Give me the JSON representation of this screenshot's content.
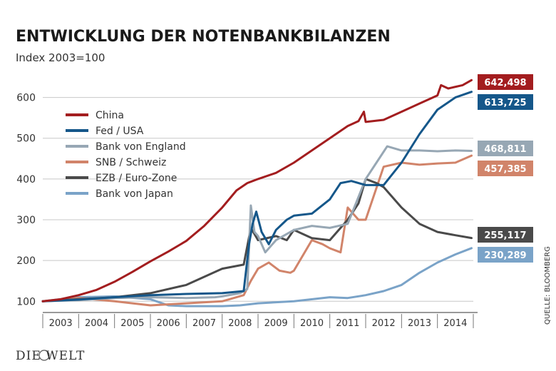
{
  "chart_data": {
    "type": "line",
    "title": "ENTWICKLUNG DER NOTENBANKBILANZEN",
    "subtitle": "Index 2003=100",
    "ylim": [
      100,
      650
    ],
    "yticks": [
      100,
      200,
      300,
      400,
      500,
      600
    ],
    "x_categories": [
      "2003",
      "2004",
      "2005",
      "2006",
      "2007",
      "2008",
      "2009",
      "2010",
      "2011",
      "2012",
      "2013",
      "2014"
    ],
    "xlim": [
      2003.0,
      2015.0
    ],
    "grid": true,
    "legend_position": "top-left",
    "source": "QUELLE: BLOOMBERG",
    "brand": "DIE WELT",
    "series": [
      {
        "name": "China",
        "color": "#a31d1f",
        "end_label": "642,498",
        "points": [
          [
            2003.0,
            100
          ],
          [
            2003.5,
            105
          ],
          [
            2004.0,
            115
          ],
          [
            2004.5,
            128
          ],
          [
            2005.0,
            148
          ],
          [
            2005.5,
            172
          ],
          [
            2006.0,
            198
          ],
          [
            2006.5,
            222
          ],
          [
            2007.0,
            248
          ],
          [
            2007.5,
            285
          ],
          [
            2008.0,
            330
          ],
          [
            2008.4,
            372
          ],
          [
            2008.7,
            390
          ],
          [
            2009.0,
            400
          ],
          [
            2009.5,
            415
          ],
          [
            2010.0,
            440
          ],
          [
            2010.5,
            470
          ],
          [
            2011.0,
            500
          ],
          [
            2011.5,
            530
          ],
          [
            2011.8,
            542
          ],
          [
            2011.95,
            565
          ],
          [
            2012.0,
            540
          ],
          [
            2012.5,
            545
          ],
          [
            2013.0,
            565
          ],
          [
            2013.5,
            585
          ],
          [
            2014.0,
            605
          ],
          [
            2014.1,
            630
          ],
          [
            2014.3,
            622
          ],
          [
            2014.7,
            630
          ],
          [
            2014.95,
            642.498
          ]
        ]
      },
      {
        "name": "Fed / USA",
        "color": "#15578a",
        "end_label": "613,725",
        "points": [
          [
            2003.0,
            100
          ],
          [
            2004.0,
            104
          ],
          [
            2005.0,
            110
          ],
          [
            2006.0,
            115
          ],
          [
            2007.0,
            118
          ],
          [
            2008.0,
            120
          ],
          [
            2008.6,
            125
          ],
          [
            2008.75,
            240
          ],
          [
            2008.85,
            290
          ],
          [
            2008.95,
            320
          ],
          [
            2009.1,
            270
          ],
          [
            2009.3,
            240
          ],
          [
            2009.5,
            275
          ],
          [
            2009.8,
            300
          ],
          [
            2010.0,
            310
          ],
          [
            2010.5,
            315
          ],
          [
            2011.0,
            350
          ],
          [
            2011.3,
            390
          ],
          [
            2011.6,
            395
          ],
          [
            2012.0,
            385
          ],
          [
            2012.5,
            385
          ],
          [
            2013.0,
            440
          ],
          [
            2013.5,
            510
          ],
          [
            2014.0,
            570
          ],
          [
            2014.5,
            600
          ],
          [
            2014.95,
            613.725
          ]
        ]
      },
      {
        "name": "Bank von England",
        "color": "#97a7b4",
        "end_label": "468,811",
        "points": [
          [
            2003.0,
            100
          ],
          [
            2004.0,
            103
          ],
          [
            2005.0,
            108
          ],
          [
            2006.0,
            110
          ],
          [
            2007.0,
            108
          ],
          [
            2007.8,
            110
          ],
          [
            2008.0,
            112
          ],
          [
            2008.5,
            120
          ],
          [
            2008.7,
            130
          ],
          [
            2008.8,
            335
          ],
          [
            2008.9,
            270
          ],
          [
            2009.0,
            260
          ],
          [
            2009.2,
            220
          ],
          [
            2009.5,
            250
          ],
          [
            2010.0,
            275
          ],
          [
            2010.5,
            285
          ],
          [
            2011.0,
            280
          ],
          [
            2011.5,
            290
          ],
          [
            2012.0,
            400
          ],
          [
            2012.3,
            440
          ],
          [
            2012.6,
            480
          ],
          [
            2013.0,
            470
          ],
          [
            2013.5,
            470
          ],
          [
            2014.0,
            468
          ],
          [
            2014.5,
            470
          ],
          [
            2014.95,
            468.811
          ]
        ]
      },
      {
        "name": "SNB / Schweiz",
        "color": "#d1846a",
        "end_label": "457,385",
        "points": [
          [
            2003.0,
            100
          ],
          [
            2004.0,
            108
          ],
          [
            2005.0,
            100
          ],
          [
            2006.0,
            90
          ],
          [
            2007.0,
            95
          ],
          [
            2008.0,
            100
          ],
          [
            2008.6,
            115
          ],
          [
            2008.8,
            150
          ],
          [
            2009.0,
            180
          ],
          [
            2009.3,
            195
          ],
          [
            2009.6,
            175
          ],
          [
            2009.9,
            170
          ],
          [
            2010.0,
            175
          ],
          [
            2010.5,
            250
          ],
          [
            2010.8,
            240
          ],
          [
            2011.0,
            230
          ],
          [
            2011.3,
            220
          ],
          [
            2011.5,
            330
          ],
          [
            2011.8,
            300
          ],
          [
            2012.0,
            300
          ],
          [
            2012.5,
            430
          ],
          [
            2013.0,
            440
          ],
          [
            2013.5,
            435
          ],
          [
            2014.0,
            438
          ],
          [
            2014.5,
            440
          ],
          [
            2014.95,
            457.385
          ]
        ]
      },
      {
        "name": "EZB / Euro-Zone",
        "color": "#4a4a4a",
        "end_label": "255,117",
        "points": [
          [
            2003.0,
            100
          ],
          [
            2004.0,
            105
          ],
          [
            2005.0,
            110
          ],
          [
            2006.0,
            120
          ],
          [
            2007.0,
            140
          ],
          [
            2007.5,
            160
          ],
          [
            2008.0,
            180
          ],
          [
            2008.6,
            190
          ],
          [
            2008.8,
            280
          ],
          [
            2009.0,
            250
          ],
          [
            2009.5,
            260
          ],
          [
            2009.8,
            250
          ],
          [
            2010.0,
            275
          ],
          [
            2010.5,
            255
          ],
          [
            2011.0,
            250
          ],
          [
            2011.5,
            300
          ],
          [
            2011.8,
            340
          ],
          [
            2012.0,
            400
          ],
          [
            2012.3,
            390
          ],
          [
            2012.5,
            380
          ],
          [
            2013.0,
            330
          ],
          [
            2013.5,
            290
          ],
          [
            2014.0,
            270
          ],
          [
            2014.5,
            262
          ],
          [
            2014.95,
            255.117
          ]
        ]
      },
      {
        "name": "Bank von Japan",
        "color": "#7aa3c8",
        "end_label": "230,289",
        "points": [
          [
            2003.0,
            100
          ],
          [
            2004.0,
            110
          ],
          [
            2005.0,
            112
          ],
          [
            2006.0,
            105
          ],
          [
            2006.5,
            90
          ],
          [
            2007.0,
            88
          ],
          [
            2008.0,
            88
          ],
          [
            2008.5,
            90
          ],
          [
            2009.0,
            95
          ],
          [
            2010.0,
            100
          ],
          [
            2011.0,
            110
          ],
          [
            2011.5,
            108
          ],
          [
            2012.0,
            115
          ],
          [
            2012.5,
            125
          ],
          [
            2013.0,
            140
          ],
          [
            2013.5,
            170
          ],
          [
            2014.0,
            195
          ],
          [
            2014.5,
            215
          ],
          [
            2014.95,
            230.289
          ]
        ]
      }
    ]
  }
}
